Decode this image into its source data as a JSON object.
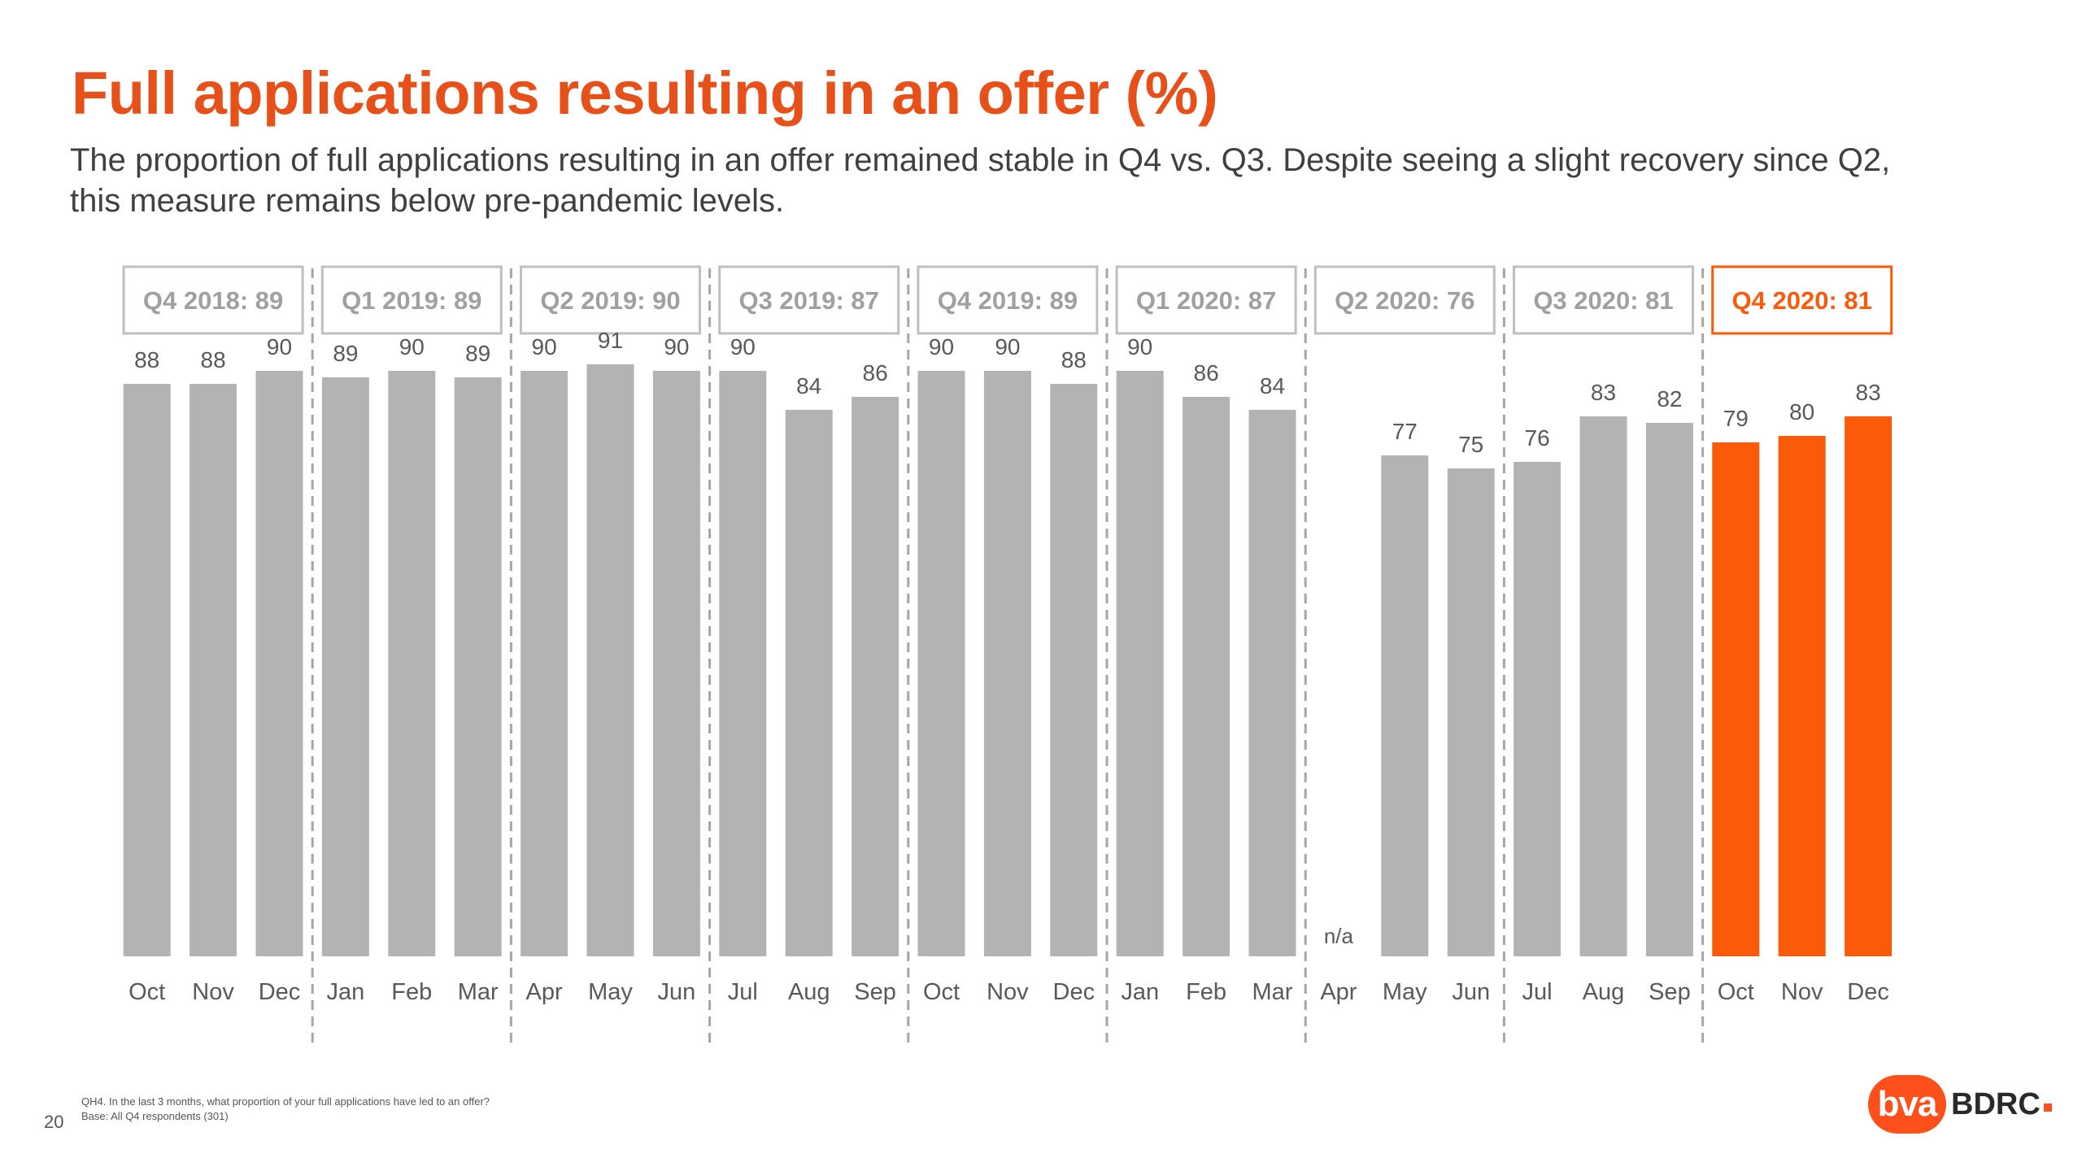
{
  "header": {
    "title": "Full applications resulting in an offer (%)",
    "subtitle": "The proportion of full applications resulting in an offer remained stable in Q4 vs. Q3. Despite seeing a slight recovery since Q2, this measure remains below pre-pandemic levels."
  },
  "footer": {
    "question": "QH4. In the last 3 months, what proportion of your full applications have led to an offer?",
    "base": "Base: All Q4 respondents (301)",
    "page_number": "20",
    "logo_mark": "bva",
    "logo_word": "BDRC"
  },
  "colors": {
    "bar_default": "#b3b3b3",
    "bar_highlight": "#fa5a0a",
    "title": "#e8501a",
    "label": "#595959",
    "divider": "#a6a6a6"
  },
  "chart_data": {
    "type": "bar",
    "categories": [
      "Oct",
      "Nov",
      "Dec",
      "Jan",
      "Feb",
      "Mar",
      "Apr",
      "May",
      "Jun",
      "Jul",
      "Aug",
      "Sep",
      "Oct",
      "Nov",
      "Dec",
      "Jan",
      "Feb",
      "Mar",
      "Apr",
      "May",
      "Jun",
      "Jul",
      "Aug",
      "Sep",
      "Oct",
      "Nov",
      "Dec"
    ],
    "values": [
      88,
      88,
      90,
      89,
      90,
      89,
      90,
      91,
      90,
      90,
      84,
      86,
      90,
      90,
      88,
      90,
      86,
      84,
      null,
      77,
      75,
      76,
      83,
      82,
      79,
      80,
      83
    ],
    "value_labels": [
      "88",
      "88",
      "90",
      "89",
      "90",
      "89",
      "90",
      "91",
      "90",
      "90",
      "84",
      "86",
      "90",
      "90",
      "88",
      "90",
      "86",
      "84",
      "n/a",
      "77",
      "75",
      "76",
      "83",
      "82",
      "79",
      "80",
      "83"
    ],
    "ylim": [
      0,
      100
    ],
    "grid": false,
    "quarters": [
      {
        "label": "Q4 2018: 89",
        "highlight": false
      },
      {
        "label": "Q1 2019: 89",
        "highlight": false
      },
      {
        "label": "Q2 2019: 90",
        "highlight": false
      },
      {
        "label": "Q3 2019: 87",
        "highlight": false
      },
      {
        "label": "Q4 2019: 89",
        "highlight": false
      },
      {
        "label": "Q1 2020: 87",
        "highlight": false
      },
      {
        "label": "Q2 2020: 76",
        "highlight": false
      },
      {
        "label": "Q3 2020: 81",
        "highlight": false
      },
      {
        "label": "Q4 2020: 81",
        "highlight": true
      }
    ]
  }
}
